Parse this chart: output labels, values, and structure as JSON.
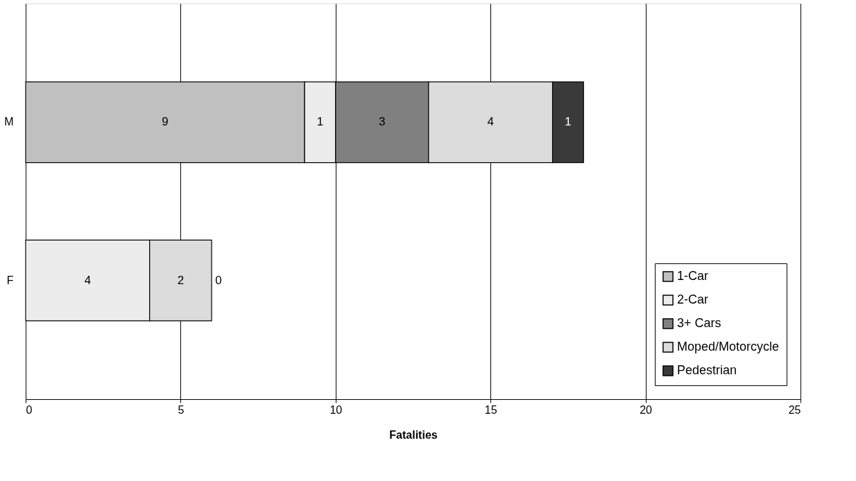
{
  "chart_data": {
    "type": "bar",
    "orientation": "horizontal",
    "stacked": true,
    "xlabel": "Fatalities",
    "categories": [
      "M",
      "F"
    ],
    "series": [
      {
        "name": "1-Car",
        "color": "#c0c0c0",
        "values": [
          9,
          null
        ],
        "value_labels": [
          "9",
          null
        ]
      },
      {
        "name": "2-Car",
        "color": "#ececec",
        "values": [
          1,
          4
        ],
        "value_labels": [
          "1",
          "4"
        ]
      },
      {
        "name": "3+ Cars",
        "color": "#808080",
        "values": [
          3,
          null
        ],
        "value_labels": [
          "3",
          null
        ]
      },
      {
        "name": "Moped/Motorcycle",
        "color": "#dcdcdc",
        "values": [
          4,
          2
        ],
        "value_labels": [
          "4",
          "2"
        ]
      },
      {
        "name": "Pedestrian",
        "color": "#3a3a3a",
        "values": [
          1,
          0
        ],
        "value_labels": [
          "1",
          "0"
        ]
      }
    ],
    "xlim": [
      0,
      25
    ],
    "xticks": [
      0,
      5,
      10,
      15,
      20,
      25
    ],
    "grid": "x",
    "legend": "bottom right"
  }
}
